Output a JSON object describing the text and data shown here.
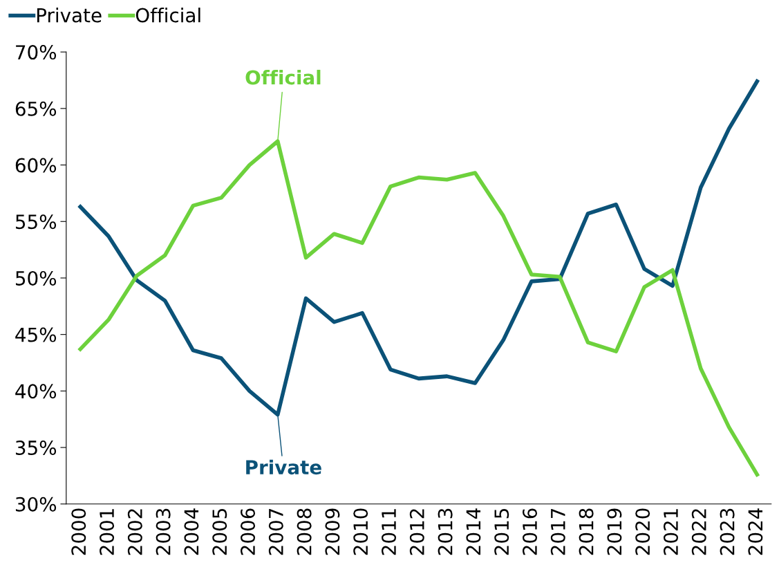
{
  "chart_data": {
    "type": "line",
    "categories": [
      "2000",
      "2001",
      "2002",
      "2003",
      "2004",
      "2005",
      "2006",
      "2007",
      "2008",
      "2009",
      "2010",
      "2011",
      "2012",
      "2013",
      "2014",
      "2015",
      "2016",
      "2017",
      "2018",
      "2019",
      "2020",
      "2021",
      "2022",
      "2023",
      "2024"
    ],
    "series": [
      {
        "name": "Private",
        "color": "#0b5278",
        "values": [
          56.3,
          53.7,
          49.8,
          48.0,
          43.6,
          42.9,
          40.0,
          37.9,
          48.2,
          46.1,
          46.9,
          41.9,
          41.1,
          41.3,
          40.7,
          44.5,
          49.7,
          49.9,
          55.7,
          56.5,
          50.8,
          49.3,
          58.0,
          63.2,
          67.4
        ]
      },
      {
        "name": "Official",
        "color": "#6dd13c",
        "values": [
          43.7,
          46.3,
          50.2,
          52.0,
          56.4,
          57.1,
          60.0,
          62.1,
          51.8,
          53.9,
          53.1,
          58.1,
          58.9,
          58.7,
          59.3,
          55.5,
          50.3,
          50.1,
          44.3,
          43.5,
          49.2,
          50.7,
          42.0,
          36.8,
          32.6
        ]
      }
    ],
    "annotations": [
      {
        "text": "Private",
        "x": "2007",
        "y": 37.9
      },
      {
        "text": "Official",
        "x": "2007",
        "y": 62.1
      }
    ],
    "ylim": [
      30,
      70
    ],
    "yticks": [
      {
        "value": 30,
        "label": "30%"
      },
      {
        "value": 35,
        "label": "35%"
      },
      {
        "value": 40,
        "label": "40%"
      },
      {
        "value": 45,
        "label": "45%"
      },
      {
        "value": 50,
        "label": "50%"
      },
      {
        "value": 55,
        "label": "55%"
      },
      {
        "value": 60,
        "label": "60%"
      },
      {
        "value": 65,
        "label": "65%"
      },
      {
        "value": 70,
        "label": "70%"
      }
    ],
    "grid": false,
    "legend": "top left",
    "marker": "none",
    "line_style": "solid"
  }
}
